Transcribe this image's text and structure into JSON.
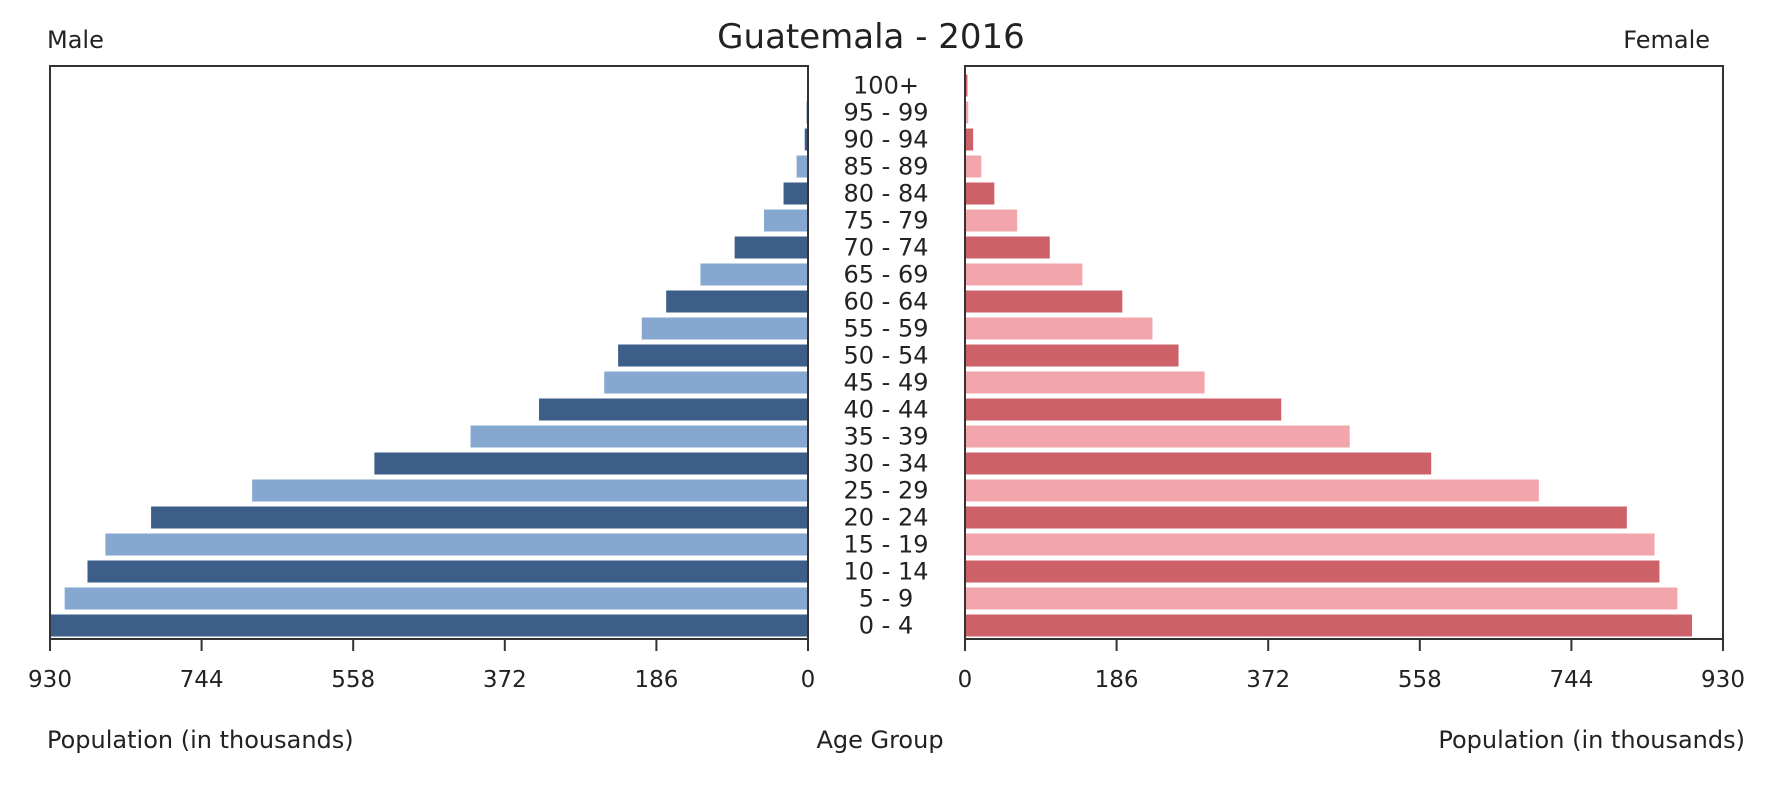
{
  "chart_data": {
    "type": "bar",
    "title": "Guatemala - 2016",
    "left_label": "Male",
    "right_label": "Female",
    "xlabel_left": "Population (in thousands)",
    "xlabel_center": "Age Group",
    "xlabel_right": "Population (in thousands)",
    "xlim": [
      0,
      930
    ],
    "ticks_left": [
      "930",
      "744",
      "558",
      "372",
      "186",
      "0"
    ],
    "ticks_right": [
      "0",
      "186",
      "372",
      "558",
      "744",
      "930"
    ],
    "categories": [
      "100+",
      "95 - 99",
      "90 - 94",
      "85 - 89",
      "80 - 84",
      "75 - 79",
      "70 - 74",
      "65 - 69",
      "60 - 64",
      "55 - 59",
      "50 - 54",
      "45 - 49",
      "40 - 44",
      "35 - 39",
      "30 - 34",
      "25 - 29",
      "20 - 24",
      "15 - 19",
      "10 - 14",
      "5 - 9",
      "0 - 4"
    ],
    "series": [
      {
        "name": "Male",
        "values": [
          1,
          2,
          4,
          14,
          30,
          54,
          90,
          132,
          174,
          204,
          233,
          250,
          330,
          414,
          532,
          682,
          806,
          862,
          884,
          912,
          930
        ],
        "colors": [
          "#3d5e89",
          "#86a7d0"
        ]
      },
      {
        "name": "Female",
        "values": [
          3,
          4,
          10,
          20,
          36,
          64,
          104,
          144,
          193,
          230,
          262,
          294,
          388,
          472,
          572,
          704,
          812,
          846,
          852,
          874,
          892
        ],
        "colors": [
          "#cc6168",
          "#f2a6ab"
        ]
      }
    ],
    "grid": false
  }
}
